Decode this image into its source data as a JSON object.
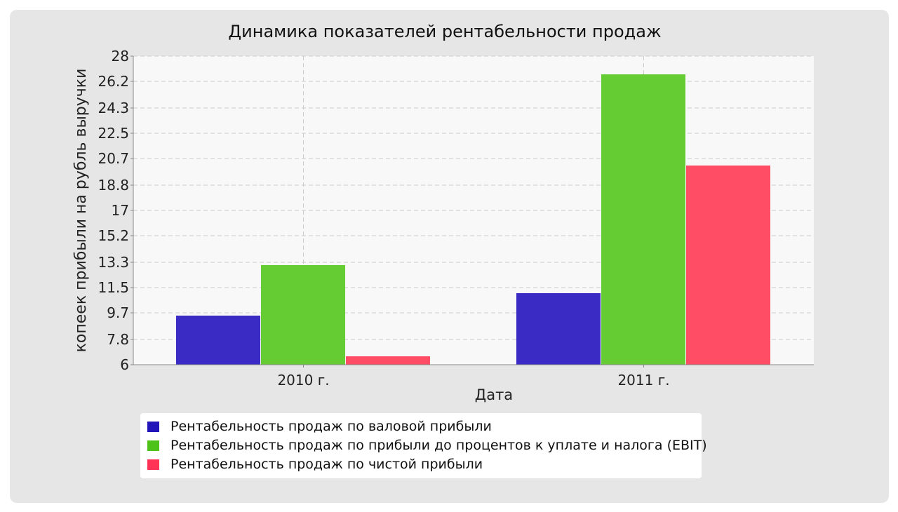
{
  "colors": {
    "background": "#e6e6e6",
    "plot_background": "#f8f8f8",
    "grid": "#cccccc",
    "series": [
      "#3a2bc4",
      "#66cc33",
      "#ff4d66"
    ]
  },
  "chart_data": {
    "type": "bar",
    "title": "Динамика показателей рентабельности продаж",
    "xlabel": "Дата",
    "ylabel": "копеек прибыли на рубль выручки",
    "categories": [
      "2010 г.",
      "2011 г."
    ],
    "y_ticks": [
      "6",
      "7.8",
      "9.7",
      "11.5",
      "13.3",
      "15.2",
      "17",
      "18.8",
      "20.7",
      "22.5",
      "24.3",
      "26.2",
      "28"
    ],
    "ylim": [
      6,
      28
    ],
    "grid": true,
    "legend_position": "bottom",
    "series": [
      {
        "name": "Рентабельность продаж по валовой прибыли",
        "values": [
          9.5,
          11.1
        ]
      },
      {
        "name": "Рентабельность продаж по прибыли до процентов к уплате и налога (EBIT)",
        "values": [
          13.1,
          26.7
        ]
      },
      {
        "name": "Рентабельность продаж по чистой прибыли",
        "values": [
          6.6,
          20.2
        ]
      }
    ]
  }
}
